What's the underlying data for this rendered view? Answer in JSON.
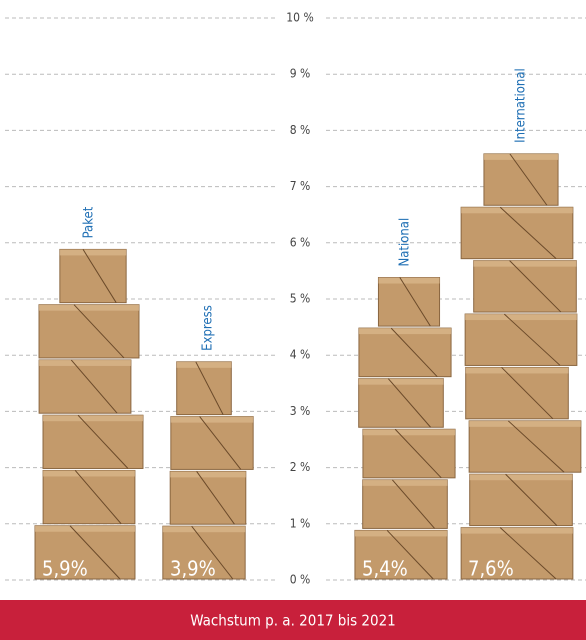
{
  "chart_data": {
    "type": "bar",
    "title": "Wachstum p. a. 2017 bis 2021",
    "categories": [
      "Paket",
      "Express",
      "National",
      "International"
    ],
    "values": [
      5.9,
      3.9,
      5.4,
      7.6
    ],
    "value_labels": [
      "5,9%",
      "3,9%",
      "5,4%",
      "7,6%"
    ],
    "color": "#c39a6b",
    "ylim": [
      0,
      10
    ],
    "yticks": [
      {
        "value": 0,
        "label": "0 %"
      },
      {
        "value": 1,
        "label": "1 %"
      },
      {
        "value": 2,
        "label": "2 %"
      },
      {
        "value": 3,
        "label": "3 %"
      },
      {
        "value": 4,
        "label": "4 %"
      },
      {
        "value": 5,
        "label": "5 %"
      },
      {
        "value": 6,
        "label": "6 %"
      },
      {
        "value": 7,
        "label": "7 %"
      },
      {
        "value": 8,
        "label": "8 %"
      },
      {
        "value": 9,
        "label": "9 %"
      },
      {
        "value": 10,
        "label": "10 %"
      }
    ],
    "grid": true
  }
}
